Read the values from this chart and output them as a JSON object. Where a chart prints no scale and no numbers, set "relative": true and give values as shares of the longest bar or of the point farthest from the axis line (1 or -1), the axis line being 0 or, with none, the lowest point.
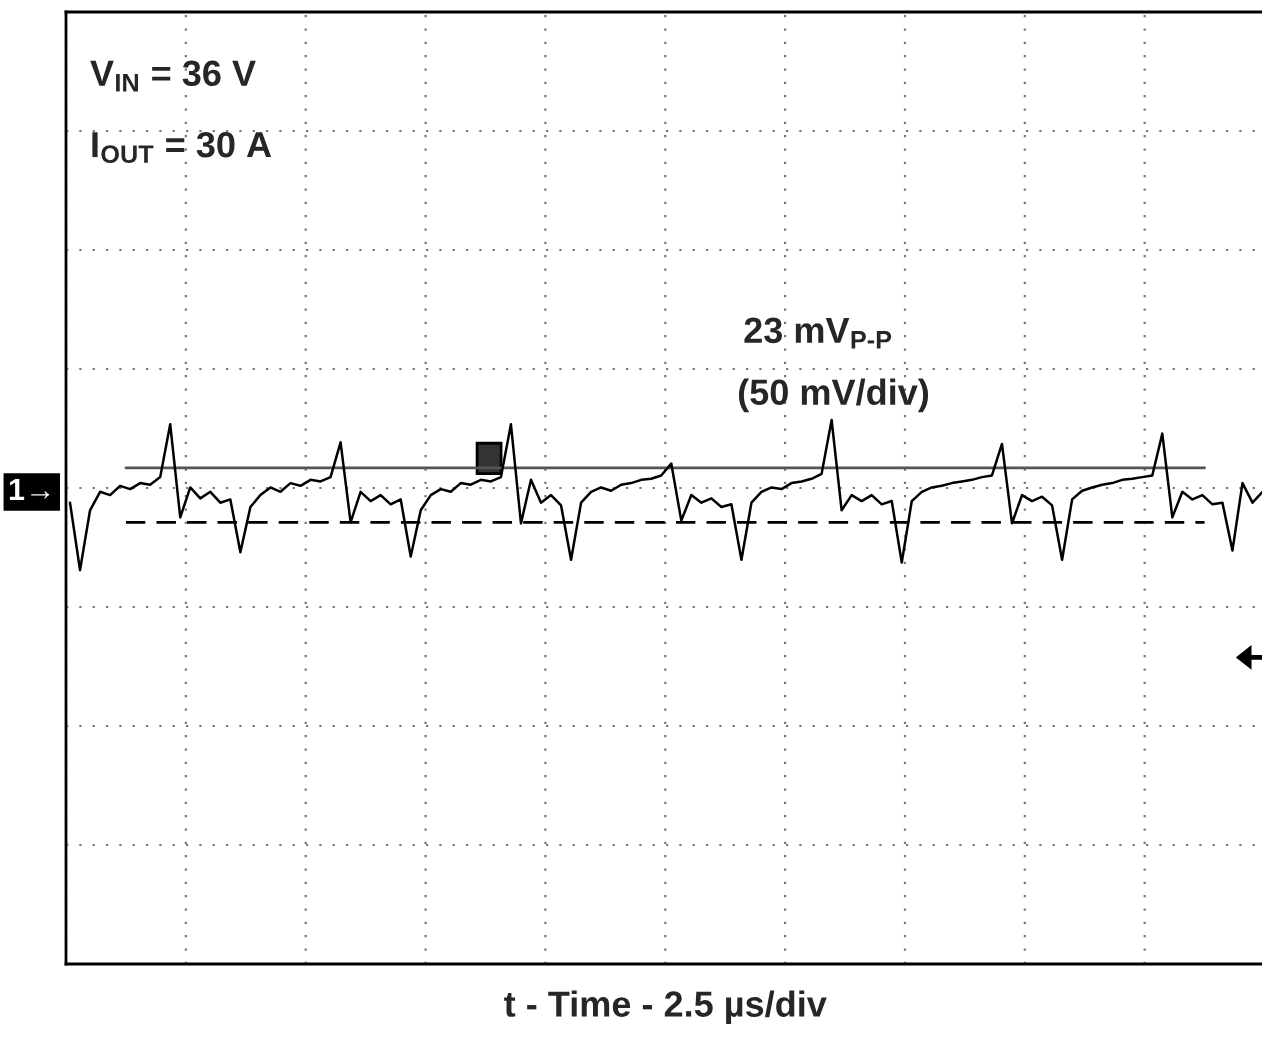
{
  "chart_data": {
    "type": "line",
    "relative": true,
    "xlabel": "t - Time - 2.5 µs/div",
    "annotations": [
      "V$_{IN}$ = 36 V",
      "I$_{OUT}$ = 30 A",
      "23 mV$_{P-P}$",
      "(50 mV/div)",
      "1→"
    ],
    "categories": [
      null,
      null,
      null,
      null,
      null,
      null,
      null,
      null,
      null,
      null,
      null,
      null,
      null,
      null,
      null,
      null,
      null,
      null,
      null,
      null,
      null,
      null,
      null,
      null,
      null,
      null,
      null,
      null,
      null,
      null,
      null,
      null,
      null,
      null,
      null,
      null,
      null,
      null,
      null,
      null,
      null,
      null,
      null,
      null,
      null,
      null,
      null,
      null,
      null,
      null,
      null,
      null,
      null,
      null,
      null,
      null,
      null,
      null,
      null,
      null,
      null,
      null,
      null,
      null,
      null,
      null,
      null,
      null,
      null,
      null,
      null,
      null,
      null,
      null,
      null,
      null,
      null,
      null,
      null,
      null,
      null,
      null,
      null,
      null,
      null,
      null,
      null,
      null,
      null,
      null,
      null,
      null,
      null,
      null,
      null,
      null,
      null,
      null,
      null,
      null,
      null,
      null,
      null,
      null,
      null,
      null,
      null,
      null,
      null,
      null,
      null,
      null,
      null,
      null,
      null,
      null,
      null,
      null,
      null,
      null
    ],
    "series": [
      {
        "color": "#000000",
        "values": [
          0.848,
          0.724,
          0.834,
          0.868,
          0.862,
          0.879,
          0.873,
          0.884,
          0.881,
          0.895,
          0.992,
          0.821,
          0.876,
          0.856,
          0.868,
          0.848,
          0.854,
          0.757,
          0.84,
          0.862,
          0.876,
          0.868,
          0.884,
          0.879,
          0.89,
          0.887,
          0.895,
          0.959,
          0.812,
          0.868,
          0.851,
          0.862,
          0.845,
          0.854,
          0.749,
          0.834,
          0.862,
          0.873,
          0.868,
          0.884,
          0.881,
          0.89,
          0.887,
          0.895,
          0.992,
          0.81,
          0.89,
          0.848,
          0.862,
          0.843,
          0.743,
          0.848,
          0.868,
          0.876,
          0.87,
          0.881,
          0.884,
          0.89,
          0.892,
          0.898,
          0.92,
          0.815,
          0.862,
          0.848,
          0.856,
          0.84,
          0.845,
          0.743,
          0.848,
          0.868,
          0.876,
          0.873,
          0.884,
          0.887,
          0.892,
          0.901,
          1.0,
          0.834,
          0.862,
          0.851,
          0.862,
          0.845,
          0.851,
          0.738,
          0.851,
          0.868,
          0.876,
          0.879,
          0.884,
          0.887,
          0.89,
          0.895,
          0.898,
          0.956,
          0.81,
          0.862,
          0.851,
          0.859,
          0.843,
          0.743,
          0.854,
          0.87,
          0.876,
          0.881,
          0.884,
          0.89,
          0.892,
          0.895,
          0.898,
          0.975,
          0.821,
          0.868,
          0.854,
          0.862,
          0.845,
          0.848,
          0.76,
          0.884,
          0.848,
          0.868
        ]
      }
    ],
    "ref_lines": [
      {
        "axis": "y",
        "value": 0.912,
        "color": "#555555",
        "line_style": "solid"
      },
      {
        "axis": "y",
        "value": 0.812,
        "color": "#000000",
        "line_style": "dashed"
      }
    ],
    "grid": true,
    "marker": "none",
    "line_style": "solid",
    "tick_labels": false
  }
}
